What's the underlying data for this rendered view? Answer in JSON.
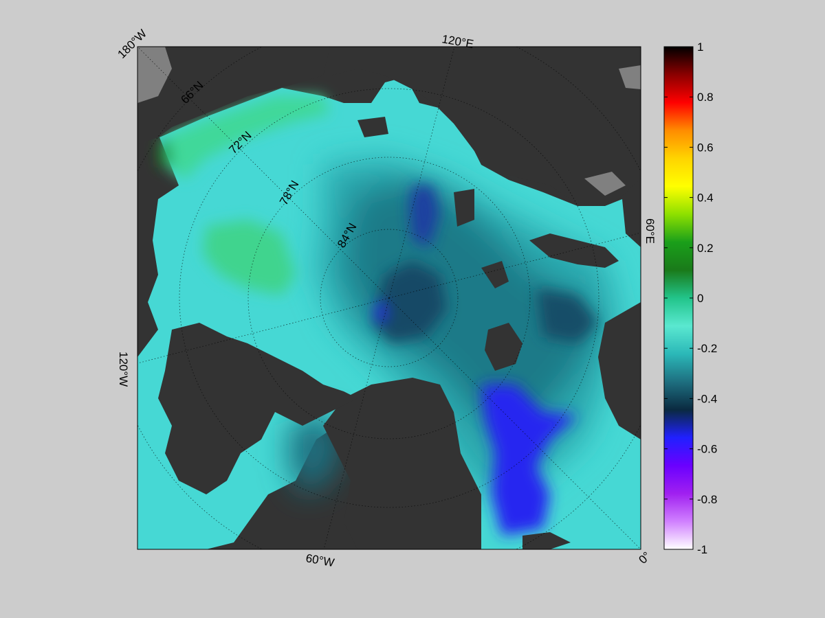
{
  "map": {
    "longitude_labels": [
      "180°W",
      "120°E",
      "60°E",
      "0°",
      "60°W",
      "120°W"
    ],
    "latitude_labels": [
      "66°N",
      "72°N",
      "78°N",
      "84°N"
    ]
  },
  "colorbar": {
    "min": -1,
    "max": 1,
    "tick_labels": [
      "1",
      "0.8",
      "0.6",
      "0.4",
      "0.2",
      "0",
      "-0.2",
      "-0.4",
      "-0.6",
      "-0.8",
      "-1"
    ],
    "colors": [
      "#000000",
      "#8b0000",
      "#ff0000",
      "#ff8c00",
      "#ffd400",
      "#ffff00",
      "#8ee000",
      "#1a9f1a",
      "#1a7a1a",
      "#22c48a",
      "#5ae8d0",
      "#2bb8b8",
      "#1e6f80",
      "#0a2a40",
      "#2020ff",
      "#6a00ff",
      "#a020f0",
      "#d080ff",
      "#ffffff"
    ]
  },
  "colors": {
    "background": "#cccccc",
    "land": "#333333",
    "ice_shelf": "#808080"
  }
}
